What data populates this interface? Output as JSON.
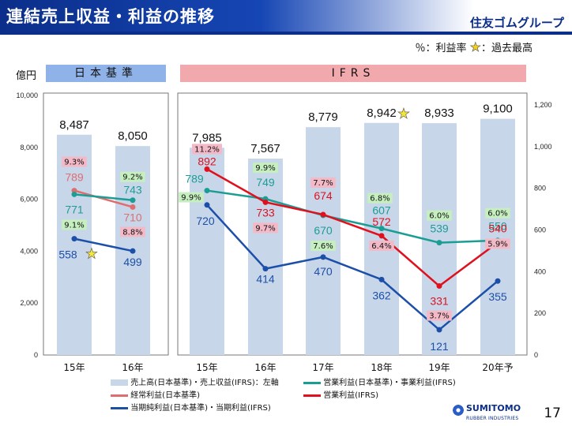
{
  "header": {
    "title": "連結売上収益・利益の推移",
    "brand": "住友ゴムグループ",
    "note_rate": "％：利益率",
    "note_star": "：過去最高"
  },
  "eras": {
    "jp": "日本基準",
    "ifrs": "IFRS"
  },
  "unit_left": "億円",
  "page_number": "17",
  "logo": {
    "name": "SUMITOMO",
    "sub": "RUBBER INDUSTRIES"
  },
  "colors": {
    "bar": "#c8d6ea",
    "keijo": "#e06d6d",
    "eigyo_jp": "#1a9e94",
    "eigyo_ifrs": "#e0111d",
    "junri": "#1c50a8",
    "pct_pink": "#f4b9c6",
    "pct_green": "#c6efc0"
  },
  "legend": {
    "sales": "売上高(日本基準)・売上収益(IFRS)：左軸",
    "op_jp": "営業利益(日本基準)・事業利益(IFRS)",
    "ordinary": "経常利益(日本基準)",
    "op_ifrs": "営業利益(IFRS)",
    "net": "当期純利益(日本基準)・当期利益(IFRS)"
  },
  "chart_data": {
    "type": "bar+line",
    "categories": [
      "15年",
      "16年",
      "15年",
      "16年",
      "17年",
      "18年",
      "19年",
      "20年予"
    ],
    "left_axis": {
      "ticks": [
        "0",
        "2,000",
        "4,000",
        "6,000",
        "8,000",
        "10,000"
      ],
      "ylim": [
        0,
        10000
      ]
    },
    "right_axis": {
      "ticks": [
        "0",
        "200",
        "400",
        "600",
        "800",
        "1,000",
        "1,200"
      ],
      "ylim": [
        0,
        1200
      ]
    },
    "sales": {
      "values": [
        8487,
        8050,
        7985,
        7567,
        8779,
        8942,
        8933,
        9100
      ],
      "labels": [
        "8,487",
        "8,050",
        "7,985",
        "7,567",
        "8,779",
        "8,942",
        "8,933",
        "9,100"
      ]
    },
    "record_star_index": 5,
    "jp_series": {
      "ordinary": {
        "values": [
          789,
          710
        ],
        "labels": [
          "789",
          "710"
        ],
        "pct": [
          "9.3%",
          "8.8%"
        ]
      },
      "operating": {
        "values": [
          771,
          743
        ],
        "labels": [
          "771",
          "743"
        ],
        "pct": [
          "9.1%",
          "9.2%"
        ]
      },
      "net": {
        "values": [
          558,
          499
        ],
        "labels": [
          "558",
          "499"
        ],
        "record_star_index": 0
      }
    },
    "ifrs_series": {
      "business": {
        "values": [
          789,
          749,
          670,
          607,
          539,
          550
        ],
        "labels": [
          "789",
          "749",
          "670",
          "607",
          "539",
          "550"
        ],
        "pct": [
          "9.9%",
          "9.9%",
          "7.6%",
          "6.8%",
          "6.0%",
          "6.0%"
        ]
      },
      "operating": {
        "values": [
          892,
          733,
          674,
          572,
          331,
          540
        ],
        "labels": [
          "892",
          "733",
          "674",
          "572",
          "331",
          "540"
        ],
        "pct": [
          "11.2%",
          "9.7%",
          "7.7%",
          "6.4%",
          "3.7%",
          "5.9%"
        ]
      },
      "net": {
        "values": [
          720,
          414,
          470,
          362,
          121,
          355
        ],
        "labels": [
          "720",
          "414",
          "470",
          "362",
          "121",
          "355"
        ]
      }
    }
  }
}
